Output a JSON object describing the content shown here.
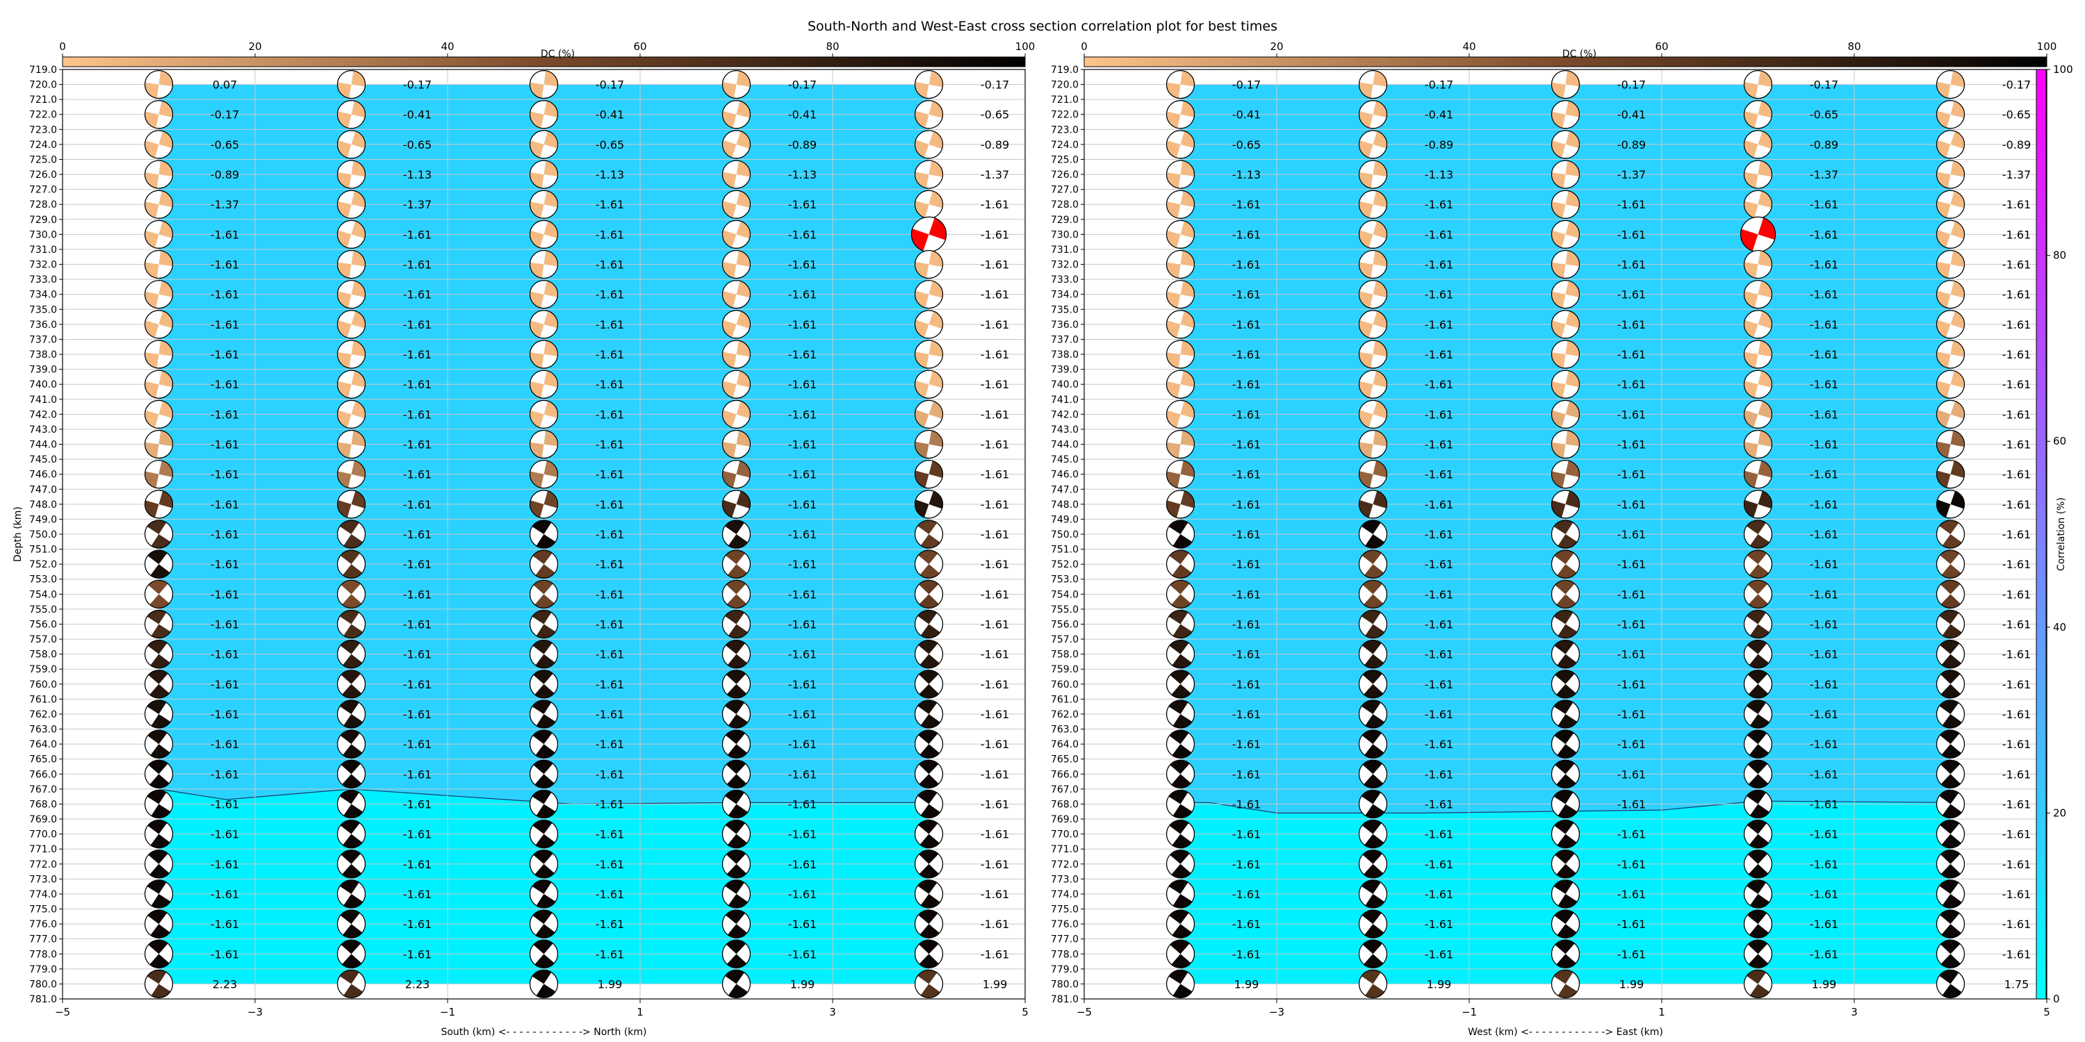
{
  "figure": {
    "title": "South-North and West-East cross section correlation plot for best times"
  },
  "colors": {
    "fill_low": "#00f0ff",
    "fill_high": "#2cd2ff",
    "correlation_low": "#00ffff",
    "correlation_high": "#ff00ff",
    "dc_low": "#ffc48a",
    "dc_mid": "#7a4a2a",
    "dc_high": "#000000",
    "best_solution": "#ff0000",
    "grid": "#c8c8c8"
  },
  "chart_data": [
    {
      "type": "heatmap",
      "panel": "south-north",
      "xlabel": "South (km) <- - - - - - - - - - - -> North (km)",
      "ylabel": "Depth (km)",
      "xlim": [
        -5,
        5
      ],
      "ylim": [
        719,
        781
      ],
      "x_ticks": [
        -5,
        -3,
        -1,
        1,
        3,
        5
      ],
      "x_tick_labels": [
        "−5",
        "−3",
        "−1",
        "1",
        "3",
        "5"
      ],
      "y_ticks_step": 1,
      "grid": true,
      "columns_x": [
        -4,
        -2,
        0,
        2,
        4
      ],
      "depths": [
        720,
        722,
        724,
        726,
        728,
        730,
        732,
        734,
        736,
        738,
        740,
        742,
        744,
        746,
        748,
        750,
        752,
        754,
        756,
        758,
        760,
        762,
        764,
        766,
        768,
        770,
        772,
        774,
        776,
        778,
        780
      ],
      "value_labels": [
        [
          "0.07",
          "-0.17",
          "-0.17",
          "-0.17",
          "-0.17"
        ],
        [
          "-0.17",
          "-0.41",
          "-0.41",
          "-0.41",
          "-0.65"
        ],
        [
          "-0.65",
          "-0.65",
          "-0.65",
          "-0.89",
          "-0.89"
        ],
        [
          "-0.89",
          "-1.13",
          "-1.13",
          "-1.13",
          "-1.37"
        ],
        [
          "-1.37",
          "-1.37",
          "-1.61",
          "-1.61",
          "-1.61"
        ],
        [
          "-1.61",
          "-1.61",
          "-1.61",
          "-1.61",
          "-1.61"
        ],
        [
          "-1.61",
          "-1.61",
          "-1.61",
          "-1.61",
          "-1.61"
        ],
        [
          "-1.61",
          "-1.61",
          "-1.61",
          "-1.61",
          "-1.61"
        ],
        [
          "-1.61",
          "-1.61",
          "-1.61",
          "-1.61",
          "-1.61"
        ],
        [
          "-1.61",
          "-1.61",
          "-1.61",
          "-1.61",
          "-1.61"
        ],
        [
          "-1.61",
          "-1.61",
          "-1.61",
          "-1.61",
          "-1.61"
        ],
        [
          "-1.61",
          "-1.61",
          "-1.61",
          "-1.61",
          "-1.61"
        ],
        [
          "-1.61",
          "-1.61",
          "-1.61",
          "-1.61",
          "-1.61"
        ],
        [
          "-1.61",
          "-1.61",
          "-1.61",
          "-1.61",
          "-1.61"
        ],
        [
          "-1.61",
          "-1.61",
          "-1.61",
          "-1.61",
          "-1.61"
        ],
        [
          "-1.61",
          "-1.61",
          "-1.61",
          "-1.61",
          "-1.61"
        ],
        [
          "-1.61",
          "-1.61",
          "-1.61",
          "-1.61",
          "-1.61"
        ],
        [
          "-1.61",
          "-1.61",
          "-1.61",
          "-1.61",
          "-1.61"
        ],
        [
          "-1.61",
          "-1.61",
          "-1.61",
          "-1.61",
          "-1.61"
        ],
        [
          "-1.61",
          "-1.61",
          "-1.61",
          "-1.61",
          "-1.61"
        ],
        [
          "-1.61",
          "-1.61",
          "-1.61",
          "-1.61",
          "-1.61"
        ],
        [
          "-1.61",
          "-1.61",
          "-1.61",
          "-1.61",
          "-1.61"
        ],
        [
          "-1.61",
          "-1.61",
          "-1.61",
          "-1.61",
          "-1.61"
        ],
        [
          "-1.61",
          "-1.61",
          "-1.61",
          "-1.61",
          "-1.61"
        ],
        [
          "-1.61",
          "-1.61",
          "-1.61",
          "-1.61",
          "-1.61"
        ],
        [
          "-1.61",
          "-1.61",
          "-1.61",
          "-1.61",
          "-1.61"
        ],
        [
          "-1.61",
          "-1.61",
          "-1.61",
          "-1.61",
          "-1.61"
        ],
        [
          "-1.61",
          "-1.61",
          "-1.61",
          "-1.61",
          "-1.61"
        ],
        [
          "-1.61",
          "-1.61",
          "-1.61",
          "-1.61",
          "-1.61"
        ],
        [
          "-1.61",
          "-1.61",
          "-1.61",
          "-1.61",
          "-1.61"
        ],
        [
          "2.23",
          "2.23",
          "1.99",
          "1.99",
          "1.99"
        ]
      ],
      "correlation_boundary_depth": [
        767.0,
        767.7,
        767.0,
        768.0,
        767.9,
        767.9
      ],
      "correlation_boundary_x": [
        -4,
        -3.3,
        -2,
        0.3,
        2,
        4
      ],
      "correlation_upper_percent": 17,
      "correlation_lower_percent": 1,
      "dc_percent": [
        [
          4,
          4,
          4,
          4,
          4
        ],
        [
          4,
          4,
          4,
          4,
          4
        ],
        [
          4,
          4,
          4,
          4,
          4
        ],
        [
          4,
          4,
          4,
          4,
          4
        ],
        [
          4,
          4,
          4,
          4,
          4
        ],
        [
          4,
          4,
          4,
          4,
          4
        ],
        [
          4,
          4,
          4,
          4,
          4
        ],
        [
          4,
          4,
          4,
          4,
          4
        ],
        [
          4,
          4,
          4,
          4,
          4
        ],
        [
          4,
          4,
          4,
          4,
          4
        ],
        [
          4,
          4,
          4,
          4,
          4
        ],
        [
          4,
          4,
          4,
          4,
          10
        ],
        [
          10,
          10,
          10,
          10,
          30
        ],
        [
          30,
          30,
          30,
          40,
          60
        ],
        [
          60,
          60,
          55,
          70,
          85
        ],
        [
          70,
          70,
          95,
          90,
          60
        ],
        [
          90,
          65,
          60,
          55,
          55
        ],
        [
          50,
          50,
          55,
          55,
          60
        ],
        [
          70,
          70,
          75,
          75,
          80
        ],
        [
          80,
          80,
          85,
          85,
          85
        ],
        [
          85,
          85,
          90,
          90,
          90
        ],
        [
          90,
          90,
          92,
          92,
          92
        ],
        [
          92,
          92,
          95,
          95,
          95
        ],
        [
          95,
          95,
          95,
          95,
          95
        ],
        [
          95,
          95,
          95,
          95,
          95
        ],
        [
          95,
          95,
          95,
          95,
          95
        ],
        [
          95,
          95,
          95,
          95,
          95
        ],
        [
          95,
          95,
          95,
          95,
          95
        ],
        [
          95,
          95,
          95,
          95,
          95
        ],
        [
          95,
          95,
          95,
          95,
          95
        ],
        [
          70,
          70,
          95,
          95,
          65
        ]
      ],
      "best_solution": {
        "x": 4,
        "depth": 730
      },
      "colorbar": {
        "label": "DC (%)",
        "ticks": [
          0,
          20,
          40,
          60,
          80,
          100
        ]
      }
    },
    {
      "type": "heatmap",
      "panel": "west-east",
      "xlabel": "West (km) <- - - - - - - - - - - -> East (km)",
      "ylabel": "",
      "xlim": [
        -5,
        5
      ],
      "ylim": [
        719,
        781
      ],
      "x_ticks": [
        -5,
        -3,
        -1,
        1,
        3,
        5
      ],
      "x_tick_labels": [
        "−5",
        "−3",
        "−1",
        "1",
        "3",
        "5"
      ],
      "y_ticks_step": 1,
      "grid": true,
      "columns_x": [
        -4,
        -2,
        0,
        2,
        4
      ],
      "depths": [
        720,
        722,
        724,
        726,
        728,
        730,
        732,
        734,
        736,
        738,
        740,
        742,
        744,
        746,
        748,
        750,
        752,
        754,
        756,
        758,
        760,
        762,
        764,
        766,
        768,
        770,
        772,
        774,
        776,
        778,
        780
      ],
      "value_labels": [
        [
          "-0.17",
          "-0.17",
          "-0.17",
          "-0.17",
          "-0.17"
        ],
        [
          "-0.41",
          "-0.41",
          "-0.41",
          "-0.65",
          "-0.65"
        ],
        [
          "-0.65",
          "-0.89",
          "-0.89",
          "-0.89",
          "-0.89"
        ],
        [
          "-1.13",
          "-1.13",
          "-1.37",
          "-1.37",
          "-1.37"
        ],
        [
          "-1.61",
          "-1.61",
          "-1.61",
          "-1.61",
          "-1.61"
        ],
        [
          "-1.61",
          "-1.61",
          "-1.61",
          "-1.61",
          "-1.61"
        ],
        [
          "-1.61",
          "-1.61",
          "-1.61",
          "-1.61",
          "-1.61"
        ],
        [
          "-1.61",
          "-1.61",
          "-1.61",
          "-1.61",
          "-1.61"
        ],
        [
          "-1.61",
          "-1.61",
          "-1.61",
          "-1.61",
          "-1.61"
        ],
        [
          "-1.61",
          "-1.61",
          "-1.61",
          "-1.61",
          "-1.61"
        ],
        [
          "-1.61",
          "-1.61",
          "-1.61",
          "-1.61",
          "-1.61"
        ],
        [
          "-1.61",
          "-1.61",
          "-1.61",
          "-1.61",
          "-1.61"
        ],
        [
          "-1.61",
          "-1.61",
          "-1.61",
          "-1.61",
          "-1.61"
        ],
        [
          "-1.61",
          "-1.61",
          "-1.61",
          "-1.61",
          "-1.61"
        ],
        [
          "-1.61",
          "-1.61",
          "-1.61",
          "-1.61",
          "-1.61"
        ],
        [
          "-1.61",
          "-1.61",
          "-1.61",
          "-1.61",
          "-1.61"
        ],
        [
          "-1.61",
          "-1.61",
          "-1.61",
          "-1.61",
          "-1.61"
        ],
        [
          "-1.61",
          "-1.61",
          "-1.61",
          "-1.61",
          "-1.61"
        ],
        [
          "-1.61",
          "-1.61",
          "-1.61",
          "-1.61",
          "-1.61"
        ],
        [
          "-1.61",
          "-1.61",
          "-1.61",
          "-1.61",
          "-1.61"
        ],
        [
          "-1.61",
          "-1.61",
          "-1.61",
          "-1.61",
          "-1.61"
        ],
        [
          "-1.61",
          "-1.61",
          "-1.61",
          "-1.61",
          "-1.61"
        ],
        [
          "-1.61",
          "-1.61",
          "-1.61",
          "-1.61",
          "-1.61"
        ],
        [
          "-1.61",
          "-1.61",
          "-1.61",
          "-1.61",
          "-1.61"
        ],
        [
          "-1.61",
          "-1.61",
          "-1.61",
          "-1.61",
          "-1.61"
        ],
        [
          "-1.61",
          "-1.61",
          "-1.61",
          "-1.61",
          "-1.61"
        ],
        [
          "-1.61",
          "-1.61",
          "-1.61",
          "-1.61",
          "-1.61"
        ],
        [
          "-1.61",
          "-1.61",
          "-1.61",
          "-1.61",
          "-1.61"
        ],
        [
          "-1.61",
          "-1.61",
          "-1.61",
          "-1.61",
          "-1.61"
        ],
        [
          "-1.61",
          "-1.61",
          "-1.61",
          "-1.61",
          "-1.61"
        ],
        [
          "1.99",
          "1.99",
          "1.99",
          "1.99",
          "1.75"
        ]
      ],
      "correlation_boundary_depth": [
        767.9,
        767.9,
        768.6,
        768.6,
        768.4,
        767.8,
        767.9
      ],
      "correlation_boundary_x": [
        -4,
        -3.7,
        -3,
        -1.5,
        1,
        2,
        4
      ],
      "correlation_upper_percent": 17,
      "correlation_lower_percent": 1,
      "dc_percent": [
        [
          4,
          4,
          4,
          4,
          4
        ],
        [
          4,
          4,
          4,
          4,
          4
        ],
        [
          4,
          4,
          4,
          4,
          4
        ],
        [
          4,
          4,
          4,
          4,
          4
        ],
        [
          4,
          4,
          4,
          4,
          4
        ],
        [
          4,
          4,
          4,
          4,
          4
        ],
        [
          4,
          4,
          4,
          4,
          4
        ],
        [
          4,
          4,
          4,
          4,
          4
        ],
        [
          4,
          4,
          4,
          4,
          4
        ],
        [
          4,
          4,
          4,
          4,
          4
        ],
        [
          4,
          4,
          4,
          4,
          4
        ],
        [
          4,
          4,
          10,
          10,
          10
        ],
        [
          10,
          10,
          10,
          10,
          40
        ],
        [
          40,
          40,
          40,
          40,
          60
        ],
        [
          60,
          70,
          70,
          75,
          95
        ],
        [
          95,
          95,
          70,
          70,
          60
        ],
        [
          60,
          55,
          55,
          55,
          55
        ],
        [
          55,
          55,
          55,
          55,
          60
        ],
        [
          75,
          75,
          75,
          75,
          75
        ],
        [
          85,
          85,
          85,
          85,
          85
        ],
        [
          90,
          90,
          90,
          90,
          90
        ],
        [
          92,
          92,
          92,
          92,
          92
        ],
        [
          95,
          95,
          95,
          95,
          95
        ],
        [
          95,
          95,
          95,
          95,
          95
        ],
        [
          95,
          95,
          95,
          95,
          95
        ],
        [
          95,
          95,
          95,
          95,
          95
        ],
        [
          95,
          95,
          95,
          95,
          95
        ],
        [
          95,
          95,
          95,
          95,
          95
        ],
        [
          95,
          95,
          95,
          95,
          95
        ],
        [
          95,
          95,
          95,
          95,
          95
        ],
        [
          95,
          65,
          65,
          70,
          95
        ]
      ],
      "best_solution": {
        "x": 2,
        "depth": 730
      },
      "colorbar": {
        "label": "DC (%)",
        "ticks": [
          0,
          20,
          40,
          60,
          80,
          100
        ]
      },
      "correlation_colorbar": {
        "label": "Correlation (%)",
        "ticks": [
          0,
          20,
          40,
          60,
          80,
          100
        ]
      }
    }
  ]
}
